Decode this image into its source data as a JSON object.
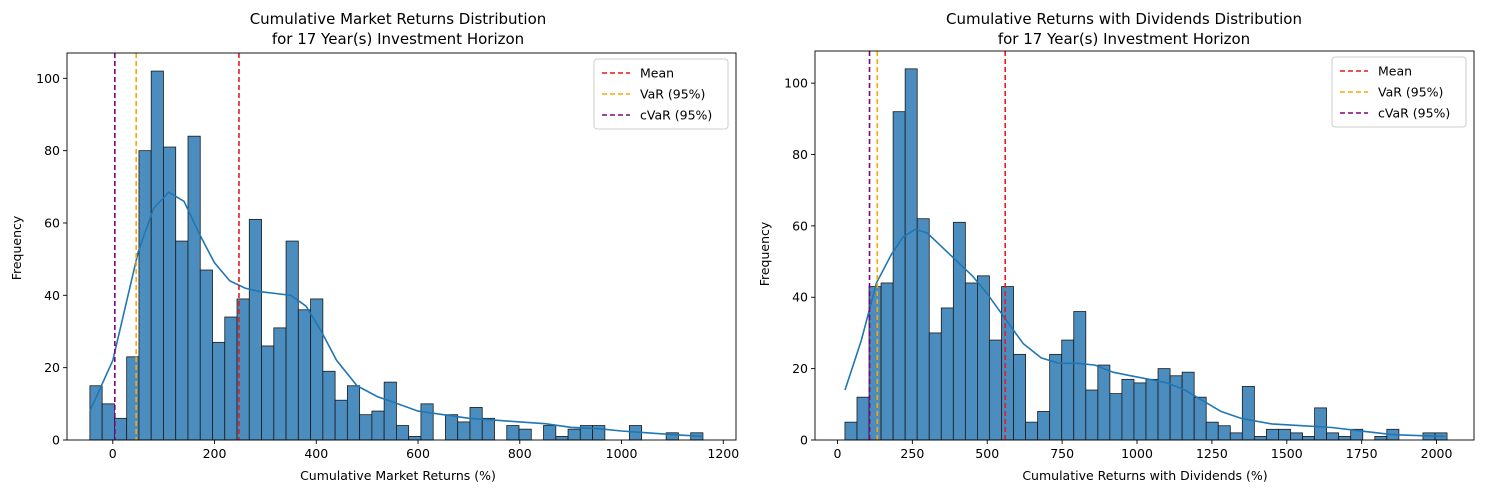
{
  "chart_data": [
    {
      "type": "bar",
      "title_line1": "Cumulative Market Returns Distribution",
      "title_line2": "for 17 Year(s) Investment Horizon",
      "xlabel": "Cumulative Market Returns (%)",
      "ylabel": "Frequency",
      "xlim": [
        -90,
        1225
      ],
      "ylim": [
        0,
        107
      ],
      "xticks": [
        0,
        200,
        400,
        600,
        800,
        1000,
        1200
      ],
      "yticks": [
        0,
        20,
        40,
        60,
        80,
        100
      ],
      "bin_start": -45,
      "bin_width": 24.1,
      "counts": [
        15,
        10,
        6,
        23,
        80,
        102,
        81,
        55,
        84,
        47,
        27,
        34,
        39,
        61,
        26,
        31,
        55,
        36,
        39,
        19,
        11,
        15,
        7,
        8,
        16,
        4,
        1,
        10,
        0,
        7,
        5,
        9,
        6,
        0,
        4,
        3,
        0,
        4,
        1,
        3,
        4,
        4,
        0,
        0,
        4,
        0,
        0,
        2,
        0,
        2
      ],
      "kde": {
        "x": [
          -45,
          0,
          50,
          80,
          110,
          140,
          170,
          200,
          230,
          260,
          290,
          320,
          350,
          380,
          410,
          440,
          480,
          520,
          560,
          600,
          650,
          700,
          750,
          800,
          850,
          900,
          950,
          1000,
          1050,
          1100,
          1160
        ],
        "y": [
          8,
          22,
          52,
          64,
          68.5,
          66,
          57,
          49,
          44,
          42,
          41,
          40.5,
          40,
          37,
          30,
          22,
          15,
          12,
          10,
          8,
          7,
          6,
          5.5,
          5,
          4.5,
          3.5,
          3.2,
          2.5,
          2,
          1.5,
          1
        ]
      },
      "vlines": [
        {
          "label": "Mean",
          "x": 248,
          "color": "#e41a1c"
        },
        {
          "label": "VaR (95%)",
          "x": 46,
          "color": "#ffa500"
        },
        {
          "label": "cVaR (95%)",
          "x": 4,
          "color": "#800080"
        }
      ],
      "legend_position": "upper right"
    },
    {
      "type": "bar",
      "title_line1": "Cumulative Returns with Dividends Distribution",
      "title_line2": "for 17 Year(s) Investment Horizon",
      "xlabel": "Cumulative Returns with Dividends (%)",
      "ylabel": "Frequency",
      "xlim": [
        -75,
        2125
      ],
      "ylim": [
        0,
        109
      ],
      "xticks": [
        0,
        250,
        500,
        750,
        1000,
        1250,
        1500,
        1750,
        2000
      ],
      "yticks": [
        0,
        20,
        40,
        60,
        80,
        100
      ],
      "bin_start": 25,
      "bin_width": 40.2,
      "counts": [
        5,
        12,
        43,
        44,
        92,
        104,
        62,
        30,
        37,
        61,
        44,
        46,
        28,
        43,
        24,
        5,
        8,
        24,
        28,
        36,
        14,
        21,
        13,
        17,
        16,
        17,
        20,
        18,
        19,
        12,
        5,
        4,
        2,
        15,
        1,
        3,
        3,
        2,
        1,
        9,
        2,
        1,
        3,
        0,
        1,
        3,
        0,
        0,
        2,
        2
      ],
      "kde": {
        "x": [
          25,
          80,
          130,
          180,
          220,
          260,
          300,
          350,
          400,
          450,
          500,
          560,
          620,
          680,
          740,
          800,
          860,
          920,
          980,
          1040,
          1100,
          1160,
          1220,
          1280,
          1350,
          1450,
          1550,
          1650,
          1750,
          1850,
          1950,
          2030
        ],
        "y": [
          14,
          28,
          44,
          52,
          57,
          59,
          58,
          54,
          50,
          46,
          41,
          34,
          27,
          23,
          21.5,
          21.5,
          21,
          19,
          18,
          17,
          16,
          14,
          11,
          8,
          6,
          4.5,
          4,
          3.5,
          2.5,
          1.5,
          1.2,
          1
        ]
      },
      "vlines": [
        {
          "label": "Mean",
          "x": 560,
          "color": "#e41a1c"
        },
        {
          "label": "VaR (95%)",
          "x": 133,
          "color": "#ffa500"
        },
        {
          "label": "cVaR (95%)",
          "x": 107,
          "color": "#800080"
        }
      ],
      "legend_position": "upper right"
    }
  ]
}
